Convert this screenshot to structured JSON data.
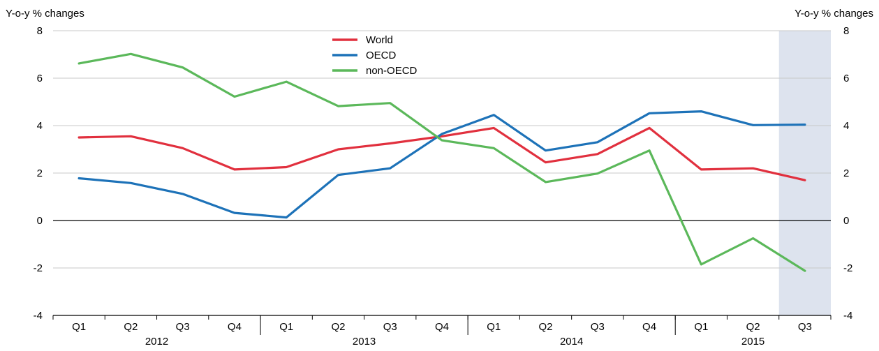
{
  "chart_data": {
    "type": "line",
    "ylabel_left": "Y-o-y % changes",
    "ylabel_right": "Y-o-y % changes",
    "ylim": [
      -4,
      8
    ],
    "yticks": [
      -4,
      -2,
      0,
      2,
      4,
      6,
      8
    ],
    "grid": true,
    "legend_position": "top-center",
    "categories": [
      "Q1",
      "Q2",
      "Q3",
      "Q4",
      "Q1",
      "Q2",
      "Q3",
      "Q4",
      "Q1",
      "Q2",
      "Q3",
      "Q4",
      "Q1",
      "Q2",
      "Q3"
    ],
    "years": [
      {
        "label": "2012",
        "start": 0,
        "end": 3
      },
      {
        "label": "2013",
        "start": 4,
        "end": 7
      },
      {
        "label": "2014",
        "start": 8,
        "end": 11
      },
      {
        "label": "2015",
        "start": 12,
        "end": 14
      }
    ],
    "shaded_categories": [
      14
    ],
    "series": [
      {
        "name": "World",
        "color": "#e1303e",
        "values": [
          3.5,
          3.55,
          3.05,
          2.15,
          2.25,
          3.0,
          3.25,
          3.55,
          3.9,
          2.45,
          2.8,
          3.9,
          2.15,
          2.2,
          1.7
        ]
      },
      {
        "name": "OECD",
        "color": "#1d72b8",
        "values": [
          1.78,
          1.58,
          1.12,
          0.32,
          0.13,
          1.92,
          2.2,
          3.65,
          4.45,
          2.95,
          3.3,
          4.52,
          4.6,
          4.02,
          4.04
        ]
      },
      {
        "name": "non-OECD",
        "color": "#5bb85a",
        "values": [
          6.62,
          7.02,
          6.45,
          5.22,
          5.85,
          4.82,
          4.95,
          3.38,
          3.05,
          1.62,
          1.98,
          2.95,
          -1.85,
          -0.75,
          -2.12
        ]
      }
    ]
  }
}
